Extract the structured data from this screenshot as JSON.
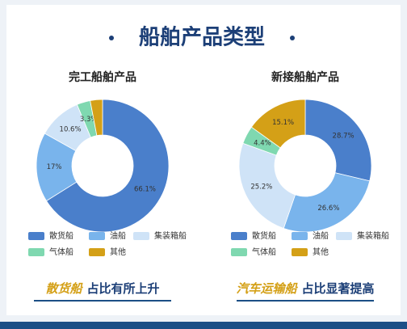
{
  "title": "船舶产品类型",
  "chart_data": [
    {
      "type": "pie",
      "title": "完工船舶产品",
      "categories": [
        "散货船",
        "油船",
        "集装箱船",
        "气体船",
        "其他"
      ],
      "values": [
        66.1,
        17,
        10.6,
        3.3,
        3.0
      ],
      "value_labels": [
        "66.1%",
        "17%",
        "10.6%",
        "3.3%",
        null
      ],
      "colors": [
        "#4a7fcb",
        "#79b4ec",
        "#cfe3f7",
        "#7fd8b0",
        "#d4a017"
      ],
      "legend": "bottom"
    },
    {
      "type": "pie",
      "title": "新接船舶产品",
      "categories": [
        "散货船",
        "油船",
        "集装箱船",
        "气体船",
        "其他"
      ],
      "values": [
        28.7,
        26.6,
        25.2,
        4.4,
        15.1
      ],
      "value_labels": [
        "28.7%",
        "26.6%",
        "25.2%",
        "4.4%",
        "15.1%"
      ],
      "colors": [
        "#4a7fcb",
        "#79b4ec",
        "#cfe3f7",
        "#7fd8b0",
        "#d4a017"
      ],
      "legend": "bottom"
    }
  ],
  "captions": [
    {
      "highlight": "散货船",
      "text": "占比有所上升"
    },
    {
      "highlight": "汽车运输船",
      "text": "占比显著提高"
    }
  ]
}
